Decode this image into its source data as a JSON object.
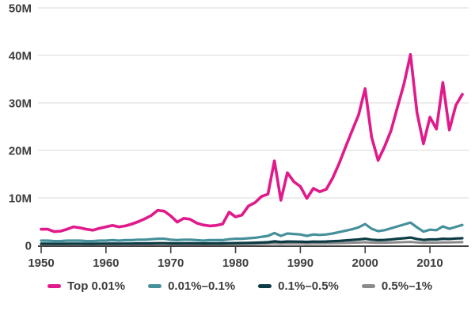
{
  "chart_data": {
    "type": "line",
    "title": "",
    "xlabel": "",
    "ylabel": "",
    "unit": "millions (M)",
    "xlim": [
      1950,
      2015
    ],
    "ylim": [
      0,
      50
    ],
    "grid": true,
    "legend_position": "bottom",
    "x_tick_labels": [
      "1950",
      "1960",
      "1970",
      "1980",
      "1990",
      "2000",
      "2010"
    ],
    "x_ticks": [
      1950,
      1960,
      1970,
      1980,
      1990,
      2000,
      2010
    ],
    "y_ticks": [
      {
        "value": 0,
        "label": "0"
      },
      {
        "value": 10,
        "label": "10M"
      },
      {
        "value": 20,
        "label": "20M"
      },
      {
        "value": 30,
        "label": "30M"
      },
      {
        "value": 40,
        "label": "40M"
      },
      {
        "value": 50,
        "label": "50M"
      }
    ],
    "x": [
      1950,
      1951,
      1952,
      1953,
      1954,
      1955,
      1956,
      1957,
      1958,
      1959,
      1960,
      1961,
      1962,
      1963,
      1964,
      1965,
      1966,
      1967,
      1968,
      1969,
      1970,
      1971,
      1972,
      1973,
      1974,
      1975,
      1976,
      1977,
      1978,
      1979,
      1980,
      1981,
      1982,
      1983,
      1984,
      1985,
      1986,
      1987,
      1988,
      1989,
      1990,
      1991,
      1992,
      1993,
      1994,
      1995,
      1996,
      1997,
      1998,
      1999,
      2000,
      2001,
      2002,
      2003,
      2004,
      2005,
      2006,
      2007,
      2008,
      2009,
      2010,
      2011,
      2012,
      2013,
      2014,
      2015
    ],
    "series": [
      {
        "name": "Top 0.01%",
        "color": "#e01a8b",
        "stroke_width": 3.6,
        "values": [
          3.4,
          3.4,
          2.9,
          3.0,
          3.4,
          3.9,
          3.7,
          3.4,
          3.2,
          3.6,
          3.9,
          4.2,
          3.9,
          4.1,
          4.5,
          5.0,
          5.6,
          6.3,
          7.4,
          7.2,
          6.2,
          4.9,
          5.7,
          5.5,
          4.7,
          4.3,
          4.1,
          4.2,
          4.5,
          7.0,
          6.0,
          6.4,
          8.3,
          9.0,
          10.3,
          10.8,
          17.8,
          9.5,
          15.3,
          13.4,
          12.4,
          9.9,
          12.0,
          11.3,
          11.8,
          14.2,
          17.3,
          20.8,
          24.2,
          27.5,
          33.0,
          22.8,
          17.9,
          20.8,
          24.2,
          29.2,
          34.0,
          40.2,
          28.0,
          21.4,
          27.0,
          24.5,
          34.3,
          24.3,
          29.5,
          31.8
        ]
      },
      {
        "name": "0.01%–0.1%",
        "color": "#45909b",
        "stroke_width": 3.2,
        "values": [
          1.0,
          1.0,
          0.9,
          0.9,
          1.0,
          1.0,
          1.0,
          0.9,
          0.9,
          1.0,
          1.0,
          1.1,
          1.0,
          1.1,
          1.1,
          1.2,
          1.2,
          1.3,
          1.4,
          1.4,
          1.2,
          1.1,
          1.2,
          1.2,
          1.1,
          1.0,
          1.1,
          1.1,
          1.1,
          1.3,
          1.4,
          1.4,
          1.5,
          1.6,
          1.8,
          2.0,
          2.6,
          2.0,
          2.5,
          2.4,
          2.3,
          2.0,
          2.3,
          2.2,
          2.3,
          2.5,
          2.8,
          3.1,
          3.4,
          3.8,
          4.5,
          3.5,
          3.0,
          3.2,
          3.6,
          4.0,
          4.4,
          4.8,
          3.8,
          2.9,
          3.3,
          3.2,
          4.0,
          3.5,
          3.9,
          4.3
        ]
      },
      {
        "name": "0.1%–0.5%",
        "color": "#0d3b44",
        "stroke_width": 3.2,
        "values": [
          0.35,
          0.35,
          0.33,
          0.33,
          0.35,
          0.36,
          0.36,
          0.34,
          0.34,
          0.36,
          0.37,
          0.38,
          0.37,
          0.38,
          0.39,
          0.41,
          0.42,
          0.44,
          0.46,
          0.46,
          0.43,
          0.42,
          0.44,
          0.44,
          0.41,
          0.4,
          0.41,
          0.42,
          0.43,
          0.47,
          0.49,
          0.5,
          0.54,
          0.57,
          0.62,
          0.67,
          0.85,
          0.72,
          0.82,
          0.8,
          0.78,
          0.73,
          0.8,
          0.78,
          0.82,
          0.88,
          0.95,
          1.05,
          1.15,
          1.25,
          1.4,
          1.2,
          1.1,
          1.15,
          1.25,
          1.4,
          1.5,
          1.65,
          1.35,
          1.15,
          1.25,
          1.25,
          1.4,
          1.35,
          1.45,
          1.5
        ]
      },
      {
        "name": "0.5%–1%",
        "color": "#8a8a8a",
        "stroke_width": 3.0,
        "values": [
          0.2,
          0.2,
          0.19,
          0.19,
          0.2,
          0.21,
          0.21,
          0.2,
          0.2,
          0.21,
          0.21,
          0.22,
          0.21,
          0.22,
          0.23,
          0.24,
          0.24,
          0.25,
          0.26,
          0.26,
          0.25,
          0.24,
          0.25,
          0.25,
          0.24,
          0.23,
          0.24,
          0.24,
          0.25,
          0.27,
          0.28,
          0.28,
          0.3,
          0.32,
          0.34,
          0.36,
          0.44,
          0.39,
          0.43,
          0.42,
          0.41,
          0.39,
          0.42,
          0.41,
          0.43,
          0.45,
          0.48,
          0.52,
          0.56,
          0.6,
          0.66,
          0.58,
          0.54,
          0.56,
          0.6,
          0.65,
          0.68,
          0.73,
          0.62,
          0.55,
          0.59,
          0.59,
          0.64,
          0.62,
          0.66,
          0.68
        ]
      }
    ]
  },
  "colors": {
    "background": "#ffffff",
    "gridline": "#d9d9d9",
    "axis": "#3f3f3f",
    "label_text": "#3d3d3d"
  }
}
